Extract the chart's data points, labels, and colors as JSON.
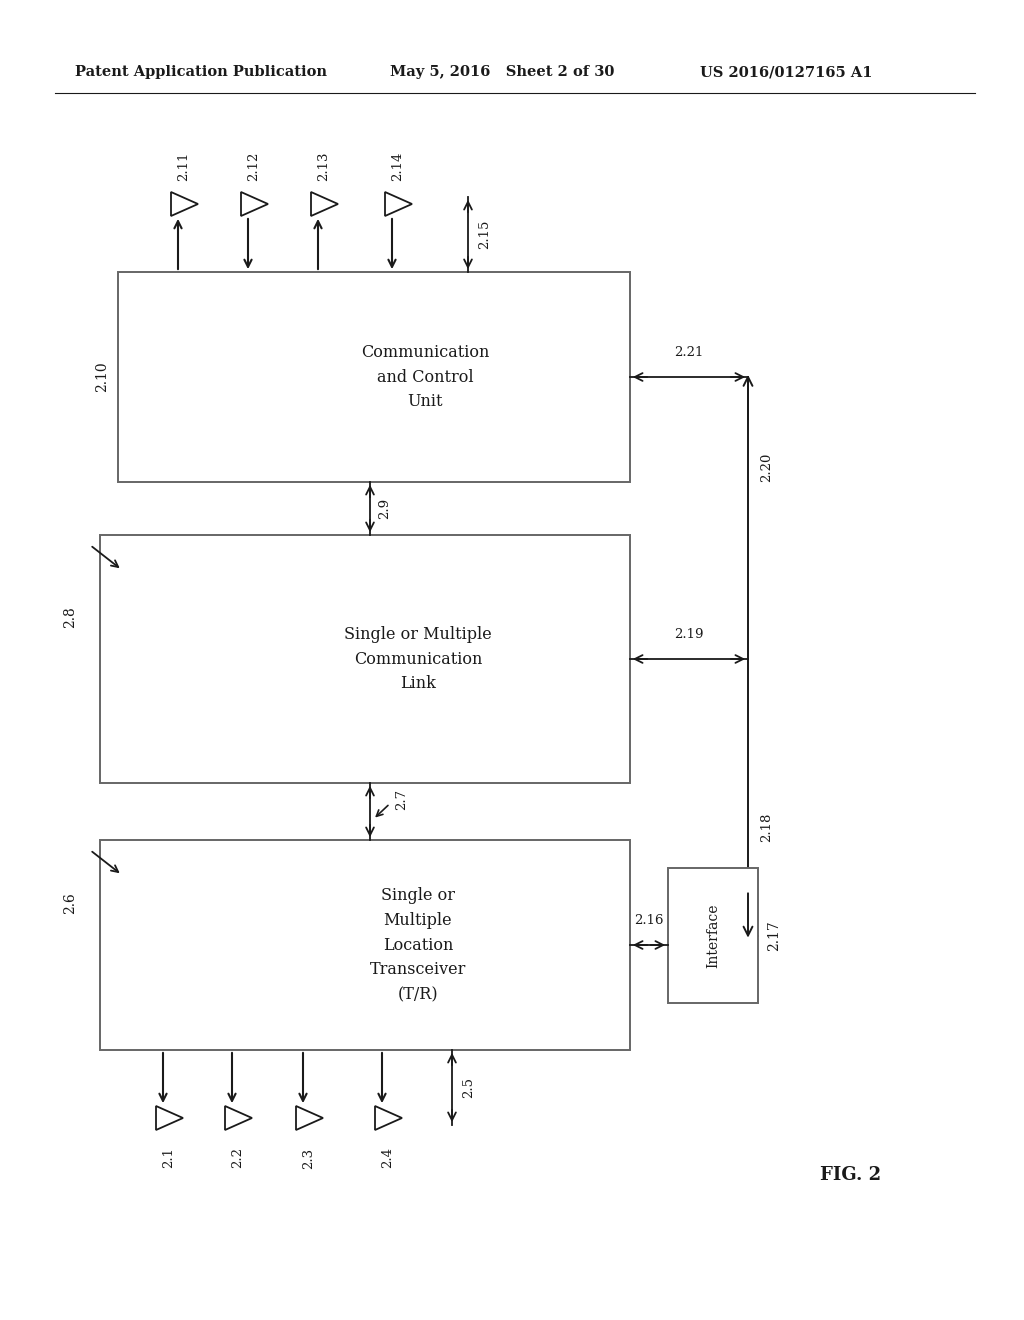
{
  "header_left": "Patent Application Publication",
  "header_mid": "May 5, 2016   Sheet 2 of 30",
  "header_right": "US 2016/0127165 A1",
  "fig_label": "FIG. 2",
  "box1_text": "Communication\nand Control\nUnit",
  "box2_text": "Single or Multiple\nCommunication\nLink",
  "box3_text": "Single or\nMultiple\nLocation\nTransceiver\n(T/R)",
  "interface_text": "Interface",
  "label_210": "2.10",
  "label_28": "2.8",
  "label_26": "2.6",
  "label_217": "2.17",
  "label_211": "2.11",
  "label_212": "2.12",
  "label_213": "2.13",
  "label_214": "2.14",
  "label_215": "2.15",
  "label_21": "2.1",
  "label_22": "2.2",
  "label_23": "2.3",
  "label_24": "2.4",
  "label_25": "2.5",
  "label_29": "2.9",
  "label_27": "2.7",
  "label_216": "2.16",
  "label_219": "2.19",
  "label_221": "2.21",
  "label_218": "2.18",
  "label_220": "2.20",
  "bg_color": "#ffffff",
  "line_color": "#1a1a1a",
  "text_color": "#1a1a1a",
  "box_edge_color": "#666666"
}
